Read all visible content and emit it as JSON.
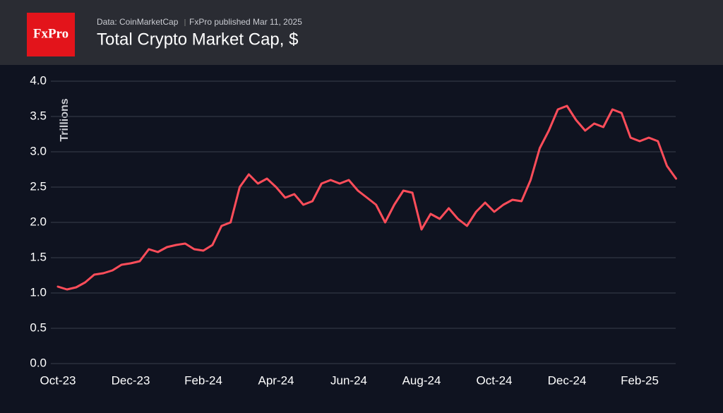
{
  "header": {
    "logo": "FxPro",
    "source": "Data: CoinMarketCap",
    "published": "FxPro published Mar 11, 2025"
  },
  "chart_data": {
    "type": "line",
    "title": "Total Crypto Market Cap, $",
    "y_label": "Trillions",
    "categories": [
      "Oct-23",
      null,
      null,
      null,
      null,
      null,
      null,
      null,
      "Dec-23",
      null,
      null,
      null,
      null,
      null,
      null,
      null,
      "Feb-24",
      null,
      null,
      null,
      null,
      null,
      null,
      null,
      "Apr-24",
      null,
      null,
      null,
      null,
      null,
      null,
      null,
      "Jun-24",
      null,
      null,
      null,
      null,
      null,
      null,
      null,
      "Aug-24",
      null,
      null,
      null,
      null,
      null,
      null,
      null,
      "Oct-24",
      null,
      null,
      null,
      null,
      null,
      null,
      null,
      "Dec-24",
      null,
      null,
      null,
      null,
      null,
      null,
      null,
      "Feb-25",
      null,
      null,
      null,
      null
    ],
    "series": [
      {
        "name": "Total Crypto Market Cap",
        "color": "#ff4d5a",
        "values": [
          1.09,
          1.05,
          1.08,
          1.15,
          1.26,
          1.28,
          1.32,
          1.4,
          1.42,
          1.45,
          1.62,
          1.58,
          1.65,
          1.68,
          1.7,
          1.62,
          1.6,
          1.68,
          1.95,
          2.0,
          2.5,
          2.68,
          2.55,
          2.62,
          2.5,
          2.35,
          2.4,
          2.25,
          2.3,
          2.55,
          2.6,
          2.55,
          2.6,
          2.45,
          2.35,
          2.25,
          2.0,
          2.25,
          2.45,
          2.42,
          1.9,
          2.12,
          2.05,
          2.2,
          2.05,
          1.95,
          2.15,
          2.28,
          2.15,
          2.25,
          2.32,
          2.3,
          2.6,
          3.05,
          3.3,
          3.6,
          3.65,
          3.45,
          3.3,
          3.4,
          3.35,
          3.6,
          3.55,
          3.2,
          3.15,
          3.2,
          3.15,
          2.8,
          2.62
        ]
      }
    ],
    "ylim": [
      0,
      4
    ],
    "yticks": [
      {
        "value": 0,
        "label": "0.0"
      },
      {
        "value": 0.5,
        "label": "0.5"
      },
      {
        "value": 1,
        "label": "1.0"
      },
      {
        "value": 1.5,
        "label": "1.5"
      },
      {
        "value": 2,
        "label": "2.0"
      },
      {
        "value": 2.5,
        "label": "2.5"
      },
      {
        "value": 3,
        "label": "3.0"
      },
      {
        "value": 3.5,
        "label": "3.5"
      },
      {
        "value": 4,
        "label": "4.0"
      }
    ],
    "grid": true
  }
}
